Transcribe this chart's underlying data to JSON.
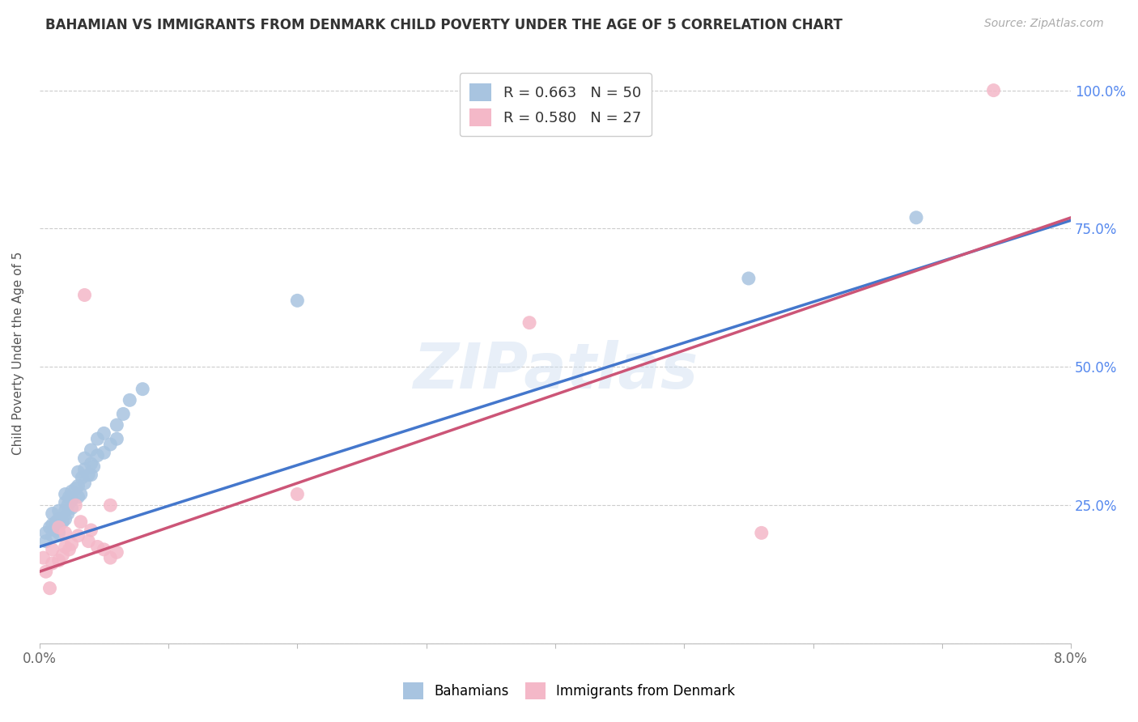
{
  "title": "BAHAMIAN VS IMMIGRANTS FROM DENMARK CHILD POVERTY UNDER THE AGE OF 5 CORRELATION CHART",
  "source": "Source: ZipAtlas.com",
  "ylabel": "Child Poverty Under the Age of 5",
  "xlim": [
    0.0,
    0.08
  ],
  "ylim": [
    0.0,
    1.05
  ],
  "x_ticks": [
    0.0,
    0.01,
    0.02,
    0.03,
    0.04,
    0.05,
    0.06,
    0.07,
    0.08
  ],
  "x_tick_labels": [
    "0.0%",
    "",
    "",
    "",
    "",
    "",
    "",
    "",
    "8.0%"
  ],
  "y_ticks": [
    0.0,
    0.25,
    0.5,
    0.75,
    1.0
  ],
  "y_tick_labels": [
    "",
    "25.0%",
    "50.0%",
    "75.0%",
    "100.0%"
  ],
  "watermark": "ZIPatlas",
  "legend_blue_label": "R = 0.663   N = 50",
  "legend_pink_label": "R = 0.580   N = 27",
  "blue_color": "#a8c4e0",
  "pink_color": "#f4b8c8",
  "blue_line_color": "#4477cc",
  "pink_line_color": "#cc5577",
  "blue_scatter": {
    "x": [
      0.0005,
      0.0005,
      0.0008,
      0.001,
      0.001,
      0.001,
      0.0012,
      0.0013,
      0.0015,
      0.0015,
      0.0015,
      0.0015,
      0.0018,
      0.002,
      0.002,
      0.002,
      0.002,
      0.0022,
      0.0022,
      0.0023,
      0.0025,
      0.0025,
      0.0025,
      0.0028,
      0.003,
      0.003,
      0.003,
      0.0032,
      0.0033,
      0.0035,
      0.0035,
      0.0035,
      0.0038,
      0.004,
      0.004,
      0.004,
      0.0042,
      0.0045,
      0.0045,
      0.005,
      0.005,
      0.0055,
      0.006,
      0.006,
      0.0065,
      0.007,
      0.008,
      0.02,
      0.055,
      0.068
    ],
    "y": [
      0.185,
      0.2,
      0.21,
      0.195,
      0.215,
      0.235,
      0.205,
      0.22,
      0.2,
      0.215,
      0.225,
      0.24,
      0.22,
      0.225,
      0.24,
      0.255,
      0.27,
      0.235,
      0.25,
      0.265,
      0.245,
      0.26,
      0.275,
      0.28,
      0.265,
      0.285,
      0.31,
      0.27,
      0.3,
      0.29,
      0.315,
      0.335,
      0.305,
      0.305,
      0.325,
      0.35,
      0.32,
      0.34,
      0.37,
      0.345,
      0.38,
      0.36,
      0.37,
      0.395,
      0.415,
      0.44,
      0.46,
      0.62,
      0.66,
      0.77
    ]
  },
  "pink_scatter": {
    "x": [
      0.0003,
      0.0005,
      0.0008,
      0.001,
      0.001,
      0.0015,
      0.0015,
      0.0018,
      0.002,
      0.002,
      0.0023,
      0.0025,
      0.0028,
      0.003,
      0.0032,
      0.0035,
      0.0038,
      0.004,
      0.0045,
      0.005,
      0.0055,
      0.0055,
      0.006,
      0.02,
      0.038,
      0.056,
      0.074
    ],
    "y": [
      0.155,
      0.13,
      0.1,
      0.145,
      0.17,
      0.15,
      0.21,
      0.16,
      0.175,
      0.2,
      0.17,
      0.18,
      0.25,
      0.195,
      0.22,
      0.63,
      0.185,
      0.205,
      0.175,
      0.17,
      0.155,
      0.25,
      0.165,
      0.27,
      0.58,
      0.2,
      1.0
    ]
  },
  "blue_regression": {
    "slope": 7.375,
    "intercept": 0.175
  },
  "pink_regression": {
    "slope": 8.0,
    "intercept": 0.13
  },
  "figsize": [
    14.06,
    8.92
  ],
  "dpi": 100
}
